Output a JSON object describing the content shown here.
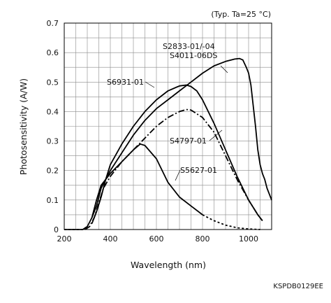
{
  "figure_code": "KSPDB0129EE",
  "chart_data": {
    "type": "line",
    "note": "(Typ. Ta=25 °C)",
    "xlabel": "Wavelength (nm)",
    "ylabel": "Photosensitivity (A/W)",
    "xlim": [
      200,
      1100
    ],
    "ylim": [
      0,
      0.7
    ],
    "xticks": [
      200,
      400,
      600,
      800,
      1000
    ],
    "yticks": [
      0,
      0.1,
      0.2,
      0.3,
      0.4,
      0.5,
      0.6,
      0.7
    ],
    "grid": true,
    "series": [
      {
        "name": "S2833-01/-04",
        "name2": "S4011-06DS",
        "style": "solid",
        "x": [
          320,
          340,
          360,
          400,
          450,
          500,
          550,
          600,
          650,
          700,
          750,
          800,
          850,
          900,
          940,
          960,
          975,
          990,
          1000,
          1010,
          1020,
          1030,
          1040,
          1050,
          1060,
          1070,
          1080,
          1090,
          1100
        ],
        "y": [
          0.04,
          0.08,
          0.14,
          0.2,
          0.26,
          0.32,
          0.37,
          0.41,
          0.44,
          0.47,
          0.5,
          0.53,
          0.555,
          0.57,
          0.578,
          0.58,
          0.575,
          0.55,
          0.53,
          0.49,
          0.42,
          0.35,
          0.27,
          0.22,
          0.19,
          0.17,
          0.14,
          0.12,
          0.1
        ]
      },
      {
        "name": "S6931-01",
        "style": "solid",
        "x": [
          320,
          340,
          360,
          380,
          400,
          450,
          500,
          550,
          600,
          650,
          700,
          730,
          750,
          775,
          800,
          850,
          900,
          950,
          1000,
          1040,
          1060
        ],
        "y": [
          0.02,
          0.06,
          0.11,
          0.17,
          0.22,
          0.29,
          0.35,
          0.4,
          0.44,
          0.47,
          0.487,
          0.49,
          0.485,
          0.47,
          0.44,
          0.36,
          0.27,
          0.18,
          0.1,
          0.05,
          0.03
        ]
      },
      {
        "name": "S4797-01",
        "style": "dashdot",
        "x": [
          290,
          310,
          330,
          350,
          370,
          400,
          450,
          500,
          550,
          600,
          650,
          700,
          730,
          750,
          800,
          850,
          900,
          950,
          1000,
          1040,
          1060
        ],
        "y": [
          0.0,
          0.01,
          0.04,
          0.09,
          0.14,
          0.18,
          0.23,
          0.27,
          0.31,
          0.35,
          0.38,
          0.4,
          0.407,
          0.405,
          0.38,
          0.33,
          0.25,
          0.17,
          0.1,
          0.05,
          0.03
        ]
      },
      {
        "name": "S5627-01",
        "style": "solid-then-dotted",
        "x": [
          200,
          280,
          300,
          320,
          340,
          360,
          400,
          450,
          500,
          530,
          550,
          600,
          650,
          700,
          750,
          800,
          850,
          900,
          950,
          1000,
          1050
        ],
        "y": [
          0.0,
          0.0,
          0.01,
          0.04,
          0.1,
          0.15,
          0.19,
          0.23,
          0.27,
          0.29,
          0.285,
          0.24,
          0.16,
          0.11,
          0.08,
          0.05,
          0.03,
          0.015,
          0.006,
          0.002,
          0.0
        ]
      }
    ]
  }
}
